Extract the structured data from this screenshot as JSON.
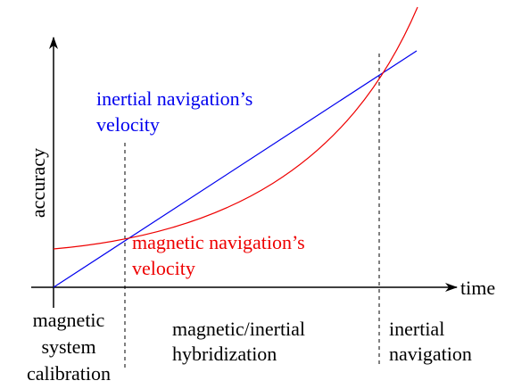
{
  "axes": {
    "y_label": "accuracy",
    "x_label": "time"
  },
  "curves": {
    "inertial": {
      "lines": [
        "inertial navigation’s",
        "velocity"
      ]
    },
    "magnetic": {
      "lines": [
        "magnetic navigation’s",
        "velocity"
      ]
    }
  },
  "phases": [
    {
      "lines": [
        "magnetic",
        "system",
        "calibration"
      ]
    },
    {
      "lines": [
        "magnetic/inertial",
        "hybridization"
      ]
    },
    {
      "lines": [
        "inertial",
        "navigation"
      ]
    }
  ]
}
